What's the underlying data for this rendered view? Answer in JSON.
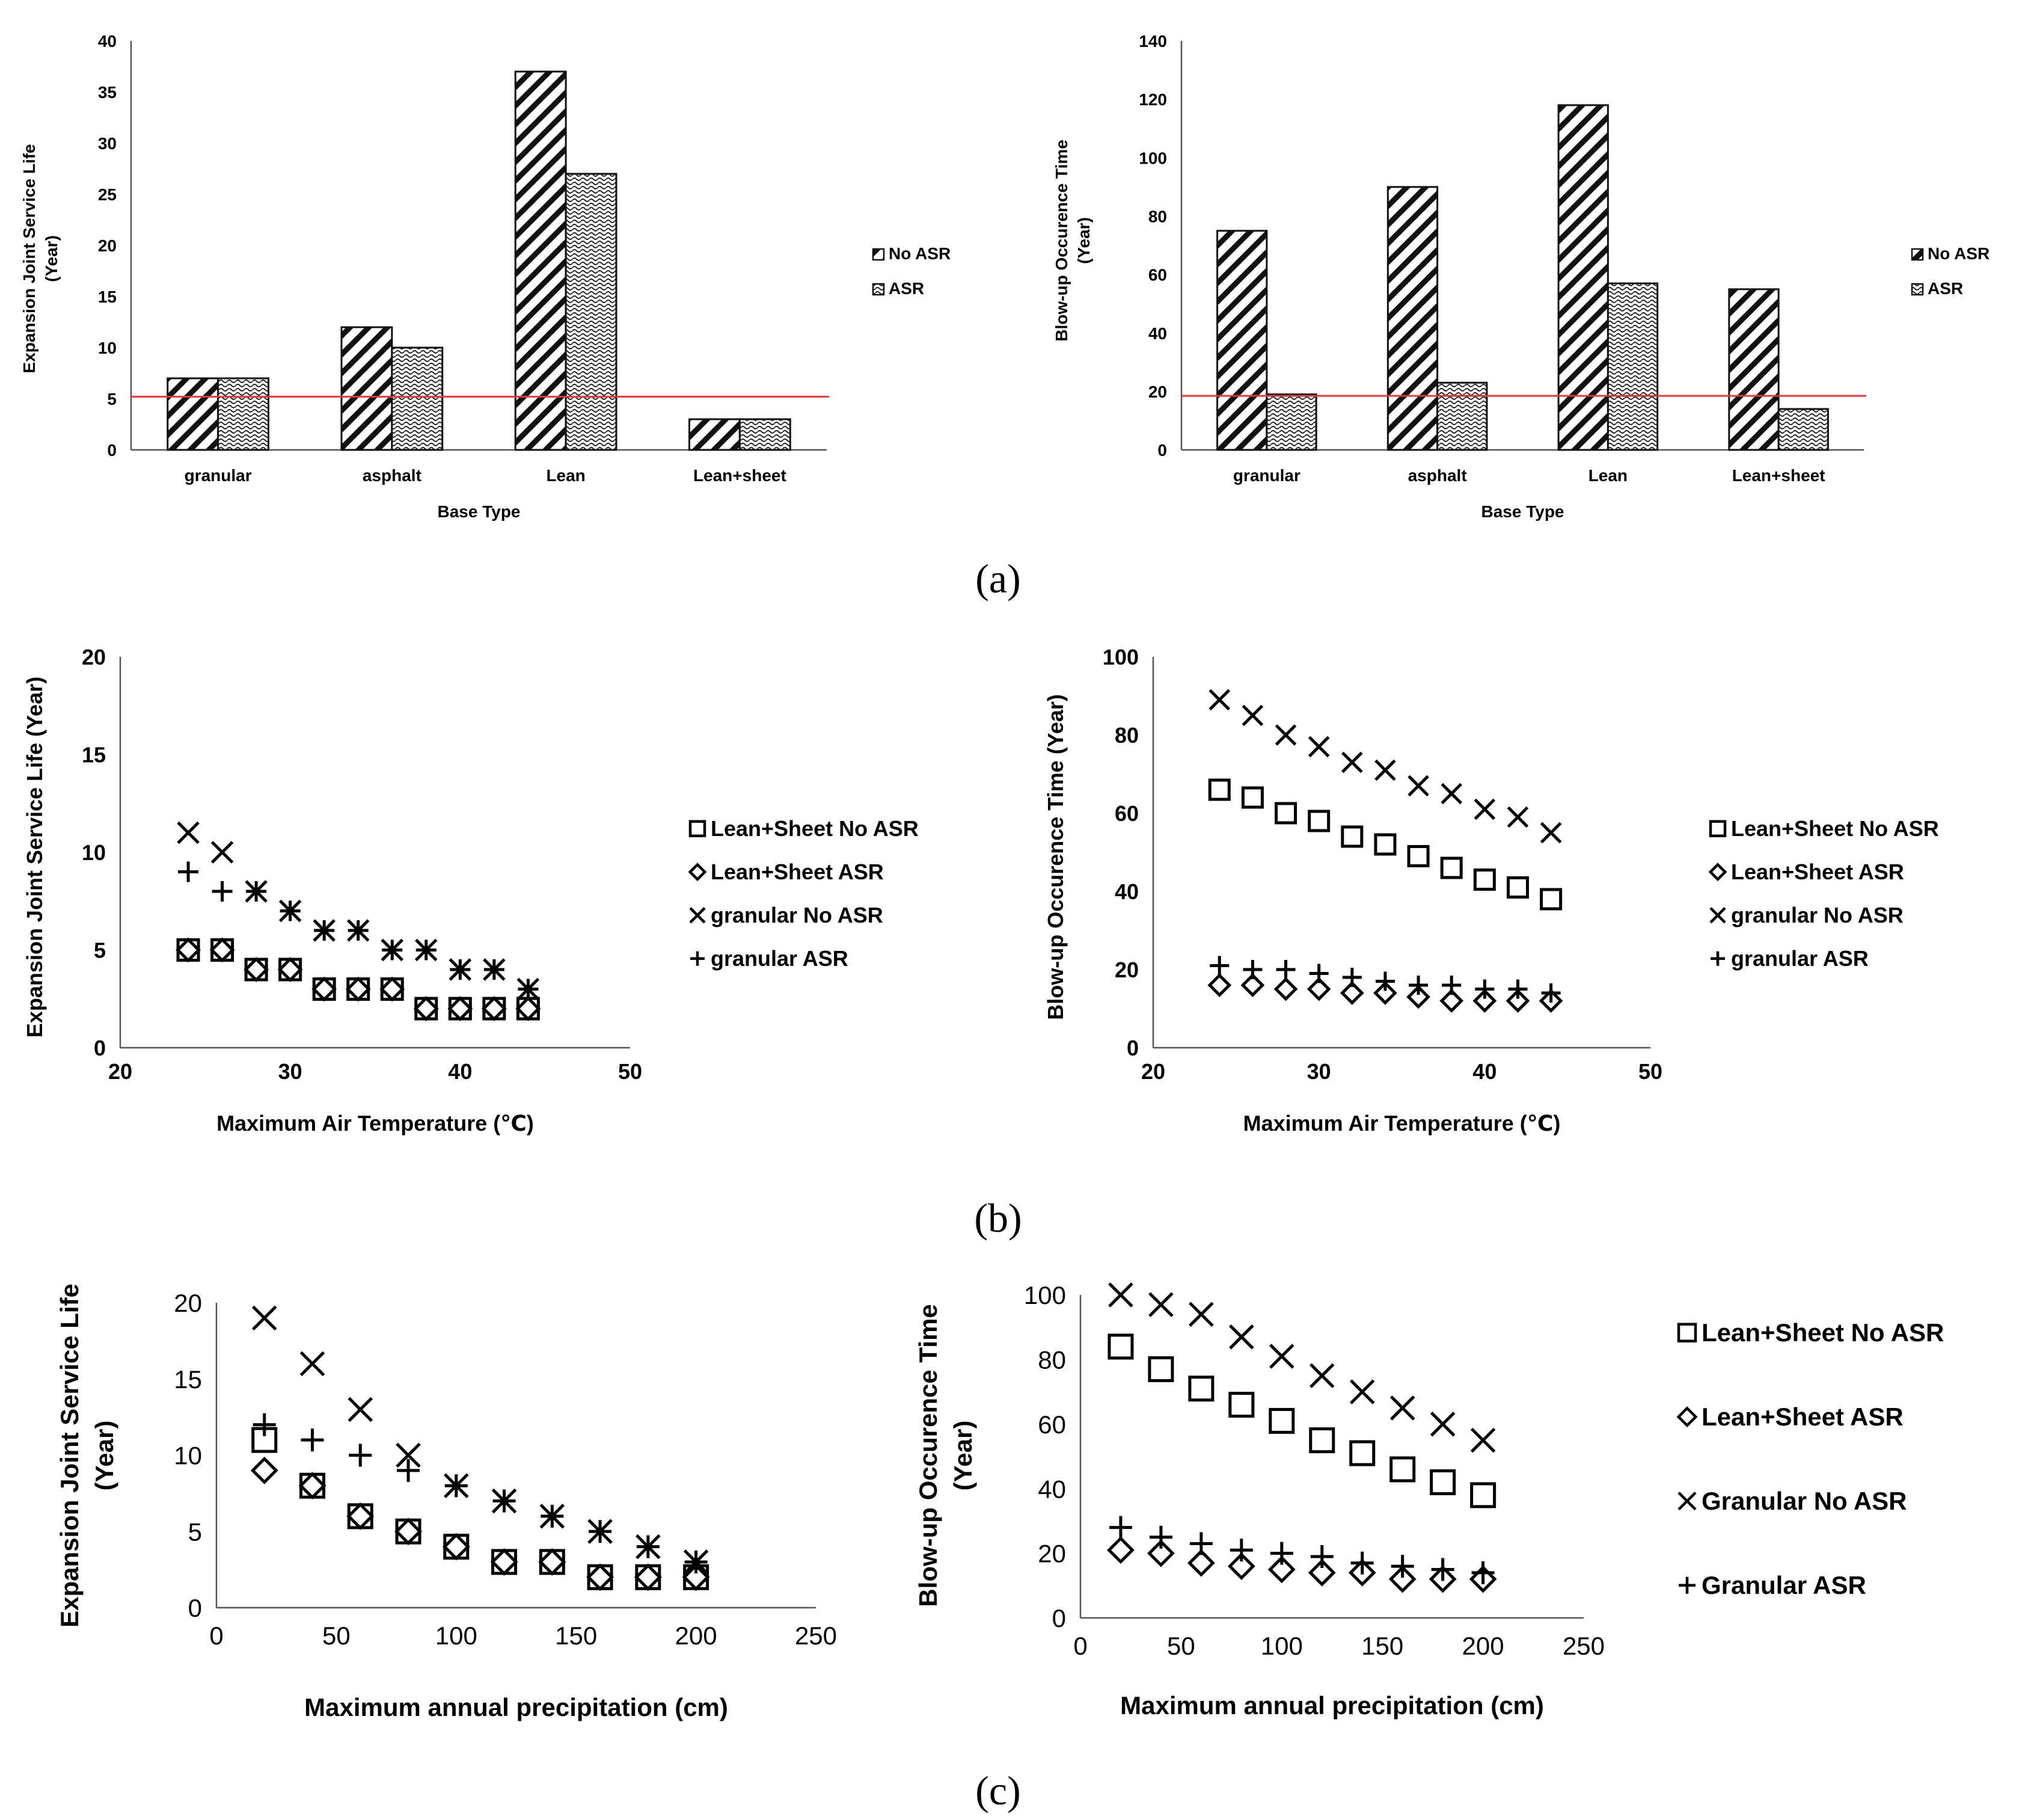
{
  "panel_labels": [
    "(a)",
    "(b)",
    "(c)"
  ],
  "chart_data": [
    {
      "id": "a1",
      "type": "bar",
      "title": "",
      "xlabel": "Base Type",
      "ylabel": "Expansion Joint Service Life",
      "ylabel2": "(Year)",
      "categories": [
        "granular",
        "asphalt",
        "Lean",
        "Lean+sheet"
      ],
      "series": [
        {
          "name": "No ASR",
          "pattern": "diag",
          "values": [
            7,
            12,
            37,
            3
          ]
        },
        {
          "name": "ASR",
          "pattern": "dots",
          "values": [
            7,
            10,
            27,
            3
          ]
        }
      ],
      "ylim": [
        0,
        40
      ],
      "yticks": [
        "0",
        "5",
        "10",
        "15",
        "20",
        "25",
        "30",
        "35",
        "40"
      ],
      "reference_line": {
        "value": 5.2,
        "color": "#e03a3a"
      },
      "legend_position": "right"
    },
    {
      "id": "a2",
      "type": "bar",
      "title": "",
      "xlabel": "Base Type",
      "ylabel": "Blow-up Occurence Time",
      "ylabel2": "(Year)",
      "categories": [
        "granular",
        "asphalt",
        "Lean",
        "Lean+sheet"
      ],
      "series": [
        {
          "name": "No ASR",
          "pattern": "diag",
          "values": [
            75,
            90,
            118,
            55
          ]
        },
        {
          "name": "ASR",
          "pattern": "dots",
          "values": [
            19,
            23,
            57,
            14
          ]
        }
      ],
      "ylim": [
        0,
        140
      ],
      "yticks": [
        "0",
        "20",
        "40",
        "60",
        "80",
        "100",
        "120",
        "140"
      ],
      "reference_line": {
        "value": 18.5,
        "color": "#e03a3a"
      },
      "legend_position": "right"
    },
    {
      "id": "b1",
      "type": "scatter",
      "xlabel": "Maximum Air Temperature (℃)",
      "ylabel": "Expansion Joint Service Life (Year)",
      "xlim": [
        20,
        50
      ],
      "ylim": [
        0,
        20
      ],
      "xticks": [
        "20",
        "30",
        "40",
        "50"
      ],
      "yticks": [
        "0",
        "5",
        "10",
        "15",
        "20"
      ],
      "x": [
        24,
        26,
        28,
        30,
        32,
        34,
        36,
        38,
        40,
        42,
        44
      ],
      "series": [
        {
          "name": "Lean+Sheet No ASR",
          "marker": "square",
          "values": [
            5,
            5,
            4,
            4,
            3,
            3,
            3,
            2,
            2,
            2,
            2
          ]
        },
        {
          "name": "Lean+Sheet ASR",
          "marker": "diamond",
          "values": [
            5,
            5,
            4,
            4,
            3,
            3,
            3,
            2,
            2,
            2,
            2
          ]
        },
        {
          "name": "granular No ASR",
          "marker": "x",
          "values": [
            11,
            10,
            8,
            7,
            6,
            6,
            5,
            5,
            4,
            4,
            3
          ]
        },
        {
          "name": "granular ASR",
          "marker": "plus",
          "values": [
            9,
            8,
            8,
            7,
            6,
            6,
            5,
            5,
            4,
            4,
            3
          ]
        }
      ],
      "legend_position": "right"
    },
    {
      "id": "b2",
      "type": "scatter",
      "xlabel": "Maximum Air Temperature (℃)",
      "ylabel": "Blow-up Occurence Time (Year)",
      "xlim": [
        20,
        50
      ],
      "ylim": [
        0,
        100
      ],
      "xticks": [
        "20",
        "30",
        "40",
        "50"
      ],
      "yticks": [
        "0",
        "20",
        "40",
        "60",
        "80",
        "100"
      ],
      "x": [
        24,
        26,
        28,
        30,
        32,
        34,
        36,
        38,
        40,
        42,
        44
      ],
      "series": [
        {
          "name": "Lean+Sheet No ASR",
          "marker": "square",
          "values": [
            66,
            64,
            60,
            58,
            54,
            52,
            49,
            46,
            43,
            41,
            38
          ]
        },
        {
          "name": "Lean+Sheet ASR",
          "marker": "diamond",
          "values": [
            16,
            16,
            15,
            15,
            14,
            14,
            13,
            12,
            12,
            12,
            12
          ]
        },
        {
          "name": "granular No ASR",
          "marker": "x",
          "values": [
            89,
            85,
            80,
            77,
            73,
            71,
            67,
            65,
            61,
            59,
            55
          ]
        },
        {
          "name": "granular ASR",
          "marker": "plus",
          "values": [
            21,
            20,
            20,
            19,
            18,
            17,
            16,
            16,
            15,
            15,
            14
          ]
        }
      ],
      "legend_position": "right"
    },
    {
      "id": "c1",
      "type": "scatter",
      "xlabel": "Maximum annual precipitation (cm)",
      "ylabel": "Expansion Joint Service Life",
      "ylabel2": "(Year)",
      "xlim": [
        0,
        250
      ],
      "ylim": [
        0,
        20
      ],
      "xticks": [
        "0",
        "50",
        "100",
        "150",
        "200",
        "250"
      ],
      "yticks": [
        "0",
        "5",
        "10",
        "15",
        "20"
      ],
      "x": [
        20,
        40,
        60,
        80,
        100,
        120,
        140,
        160,
        180,
        200
      ],
      "series": [
        {
          "name": "Lean+Sheet No ASR",
          "marker": "square",
          "values": [
            11,
            8,
            6,
            5,
            4,
            3,
            3,
            2,
            2,
            2
          ]
        },
        {
          "name": "Lean+Sheet ASR",
          "marker": "diamond",
          "values": [
            9,
            8,
            6,
            5,
            4,
            3,
            3,
            2,
            2,
            2
          ]
        },
        {
          "name": "Granular No ASR",
          "marker": "x",
          "values": [
            19,
            16,
            13,
            10,
            8,
            7,
            6,
            5,
            4,
            3
          ]
        },
        {
          "name": "Granular ASR",
          "marker": "plus",
          "values": [
            12,
            11,
            10,
            9,
            8,
            7,
            6,
            5,
            4,
            3
          ]
        }
      ],
      "legend_position": "none"
    },
    {
      "id": "c2",
      "type": "scatter",
      "xlabel": "Maximum annual precipitation (cm)",
      "ylabel": "Blow-up Occurence Time",
      "ylabel2": "(Year)",
      "xlim": [
        0,
        250
      ],
      "ylim": [
        0,
        100
      ],
      "xticks": [
        "0",
        "50",
        "100",
        "150",
        "200",
        "250"
      ],
      "yticks": [
        "0",
        "20",
        "40",
        "60",
        "80",
        "100"
      ],
      "x": [
        20,
        40,
        60,
        80,
        100,
        120,
        140,
        160,
        180,
        200
      ],
      "series": [
        {
          "name": "Lean+Sheet No ASR",
          "marker": "square",
          "values": [
            84,
            77,
            71,
            66,
            61,
            55,
            51,
            46,
            42,
            38
          ]
        },
        {
          "name": "Lean+Sheet ASR",
          "marker": "diamond",
          "values": [
            21,
            20,
            17,
            16,
            15,
            14,
            14,
            12,
            12,
            12
          ]
        },
        {
          "name": "Granular No ASR",
          "marker": "x",
          "values": [
            100,
            97,
            94,
            87,
            81,
            75,
            70,
            65,
            60,
            55
          ]
        },
        {
          "name": "Granular ASR",
          "marker": "plus",
          "values": [
            28,
            25,
            23,
            21,
            20,
            19,
            17,
            16,
            15,
            14
          ]
        }
      ],
      "legend_position": "right"
    }
  ]
}
